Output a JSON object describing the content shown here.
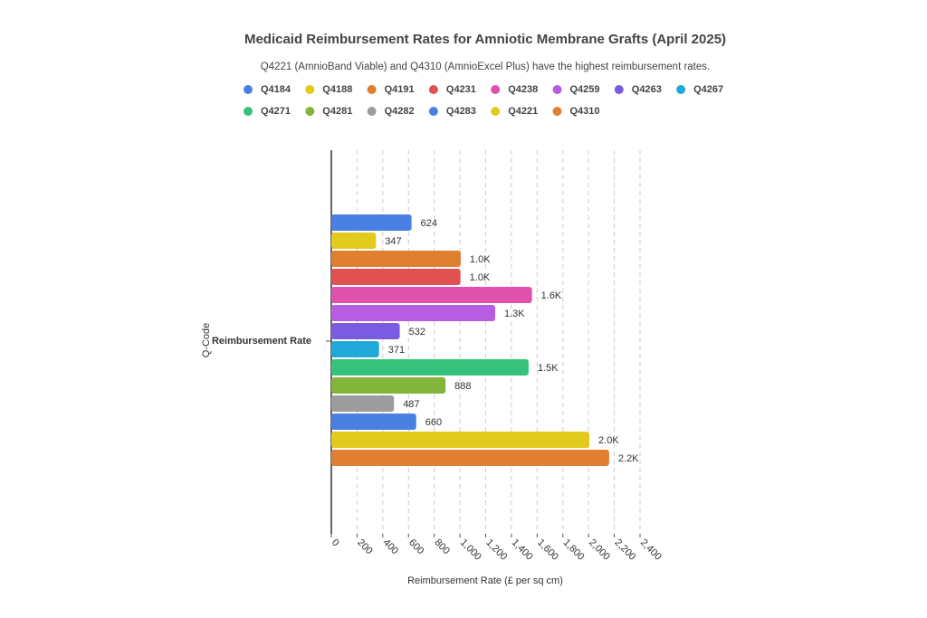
{
  "chart_data": {
    "type": "bar",
    "orientation": "horizontal",
    "title": "Medicaid Reimbursement Rates for Amniotic Membrane Grafts (April 2025)",
    "subtitle": "Q4221 (AmnioBand Viable) and Q4310 (AmnioExcel Plus) have the highest reimbursement rates.",
    "x_label": "Reimbursement Rate (£ per sq cm)",
    "y_label": "Q-Code",
    "categories": [
      "Reimbursement Rate"
    ],
    "series": [
      {
        "name": "Q4184",
        "color": "#4a80e2",
        "values": [
          624
        ],
        "value_labels": [
          "624"
        ]
      },
      {
        "name": "Q4188",
        "color": "#e2cb1c",
        "values": [
          347
        ],
        "value_labels": [
          "347"
        ]
      },
      {
        "name": "Q4191",
        "color": "#e07f30",
        "values": [
          1006
        ],
        "value_labels": [
          "1.0K"
        ]
      },
      {
        "name": "Q4231",
        "color": "#e05252",
        "values": [
          1004
        ],
        "value_labels": [
          "1.0K"
        ]
      },
      {
        "name": "Q4238",
        "color": "#df52ac",
        "values": [
          1560
        ],
        "value_labels": [
          "1.6K"
        ]
      },
      {
        "name": "Q4259",
        "color": "#b65de2",
        "values": [
          1274
        ],
        "value_labels": [
          "1.3K"
        ]
      },
      {
        "name": "Q4263",
        "color": "#7a5ce0",
        "values": [
          532
        ],
        "value_labels": [
          "532"
        ]
      },
      {
        "name": "Q4267",
        "color": "#20a9d8",
        "values": [
          371
        ],
        "value_labels": [
          "371"
        ]
      },
      {
        "name": "Q4271",
        "color": "#36c27c",
        "values": [
          1534
        ],
        "value_labels": [
          "1.5K"
        ]
      },
      {
        "name": "Q4281",
        "color": "#84b53b",
        "values": [
          888
        ],
        "value_labels": [
          "888"
        ]
      },
      {
        "name": "Q4282",
        "color": "#9c9c9c",
        "values": [
          487
        ],
        "value_labels": [
          "487"
        ]
      },
      {
        "name": "Q4283",
        "color": "#4a80e2",
        "values": [
          660
        ],
        "value_labels": [
          "660"
        ]
      },
      {
        "name": "Q4221",
        "color": "#e2cb1c",
        "values": [
          2006
        ],
        "value_labels": [
          "2.0K"
        ]
      },
      {
        "name": "Q4310",
        "color": "#e07f30",
        "values": [
          2160
        ],
        "value_labels": [
          "2.2K"
        ]
      }
    ],
    "xlim": [
      0,
      2400
    ],
    "xticks": [
      0,
      200,
      400,
      600,
      800,
      {
        "value": 1000,
        "label": "1,000"
      },
      {
        "value": 1200,
        "label": "1,200"
      },
      {
        "value": 1400,
        "label": "1,400"
      },
      {
        "value": 1600,
        "label": "1,600"
      },
      {
        "value": 1800,
        "label": "1,800"
      },
      {
        "value": 2000,
        "label": "2,000"
      },
      {
        "value": 2200,
        "label": "2,200"
      },
      {
        "value": 2400,
        "label": "2,400"
      }
    ],
    "grid": true
  }
}
